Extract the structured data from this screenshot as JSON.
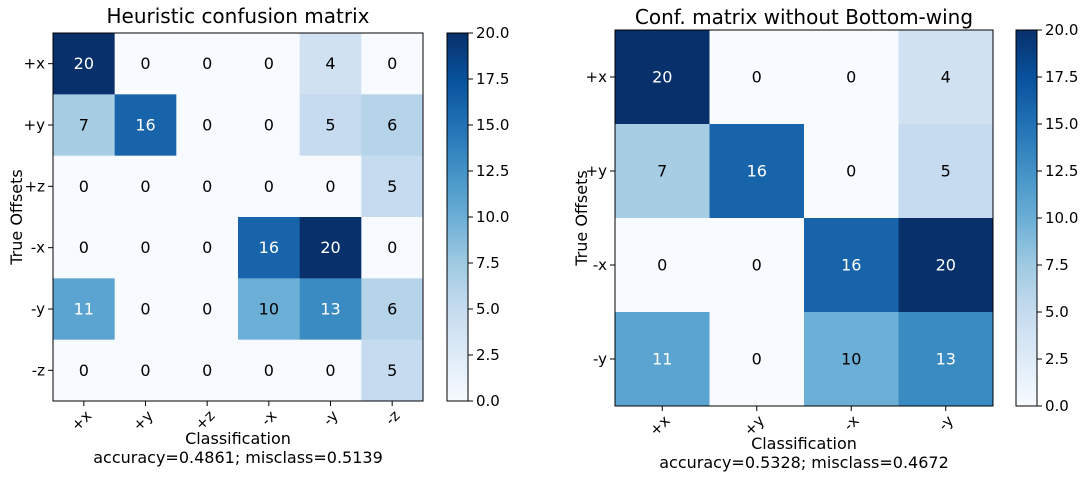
{
  "chart_data": [
    {
      "type": "heatmap",
      "title": "Heuristic confusion matrix",
      "xlabel": "Classification",
      "ylabel": "True Offsets",
      "footer": "accuracy=0.4861; misclass=0.5139",
      "x_categories": [
        "+x",
        "+y",
        "+z",
        "-x",
        "-y",
        "-z"
      ],
      "y_categories": [
        "+x",
        "+y",
        "+z",
        "-x",
        "-y",
        "-z"
      ],
      "values": [
        [
          20,
          0,
          0,
          0,
          4,
          0
        ],
        [
          7,
          16,
          0,
          0,
          5,
          6
        ],
        [
          0,
          0,
          0,
          0,
          0,
          5
        ],
        [
          0,
          0,
          0,
          16,
          20,
          0
        ],
        [
          11,
          0,
          0,
          10,
          13,
          6
        ],
        [
          0,
          0,
          0,
          0,
          0,
          5
        ]
      ],
      "colormap": "Blues",
      "vmin": 0,
      "vmax": 20,
      "colorbar_ticks": [
        "0.0",
        "2.5",
        "5.0",
        "7.5",
        "10.0",
        "12.5",
        "15.0",
        "17.5",
        "20.0"
      ]
    },
    {
      "type": "heatmap",
      "title": "Conf. matrix without Bottom-wing",
      "xlabel": "Classification",
      "ylabel": "True Offsets",
      "footer": "accuracy=0.5328; misclass=0.4672",
      "x_categories": [
        "+x",
        "+y",
        "-x",
        "-y"
      ],
      "y_categories": [
        "+x",
        "+y",
        "-x",
        "-y"
      ],
      "values": [
        [
          20,
          0,
          0,
          4
        ],
        [
          7,
          16,
          0,
          5
        ],
        [
          0,
          0,
          16,
          20
        ],
        [
          11,
          0,
          10,
          13
        ]
      ],
      "colormap": "Blues",
      "vmin": 0,
      "vmax": 20,
      "colorbar_ticks": [
        "0.0",
        "2.5",
        "5.0",
        "7.5",
        "10.0",
        "12.5",
        "15.0",
        "17.5",
        "20.0"
      ]
    }
  ]
}
